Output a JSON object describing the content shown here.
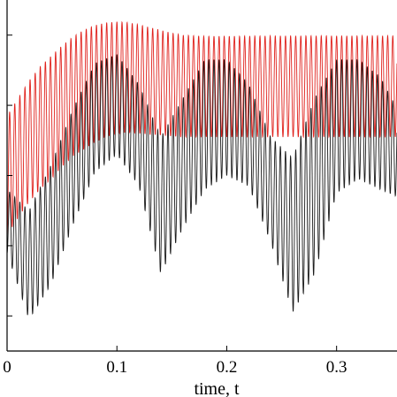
{
  "chart_data": {
    "type": "line",
    "title": "",
    "xlabel": "time, t",
    "ylabel": "",
    "xlim": [
      0,
      0.355
    ],
    "ylim": [
      -5,
      5
    ],
    "grid": false,
    "legend": "none",
    "x_ticks": [
      0,
      0.1,
      0.2,
      0.3
    ],
    "x_tick_labels": [
      "0",
      "0.1",
      "0.2",
      "0.3"
    ],
    "y_ticks": [
      -4,
      -2,
      0,
      2,
      4
    ],
    "series": [
      {
        "color": "#e0211c",
        "carrier_frequency_hz": 215,
        "upper_envelope": {
          "x": [
            0,
            0.01,
            0.02,
            0.03,
            0.04,
            0.05,
            0.06,
            0.07,
            0.08,
            0.09,
            0.1,
            0.11,
            0.12,
            0.13,
            0.14,
            0.15,
            0.16,
            0.18,
            0.2,
            0.25,
            0.3,
            0.35
          ],
          "y": [
            1.7,
            2.2,
            2.7,
            3.1,
            3.4,
            3.7,
            3.95,
            4.15,
            4.28,
            4.35,
            4.38,
            4.36,
            4.3,
            4.22,
            4.14,
            4.06,
            4.0,
            3.97,
            3.97,
            3.98,
            3.98,
            3.98
          ]
        },
        "lower_envelope": {
          "x": [
            0,
            0.01,
            0.02,
            0.03,
            0.04,
            0.05,
            0.06,
            0.07,
            0.08,
            0.09,
            0.1,
            0.11,
            0.12,
            0.13,
            0.14,
            0.15,
            0.16,
            0.2,
            0.25,
            0.3,
            0.35
          ],
          "y": [
            -1.7,
            -1.2,
            -0.75,
            -0.4,
            -0.1,
            0.25,
            0.55,
            0.75,
            0.95,
            1.1,
            1.2,
            1.23,
            1.2,
            1.17,
            1.15,
            1.12,
            1.1,
            1.1,
            1.1,
            1.1,
            1.1
          ]
        }
      },
      {
        "color": "#1a1a1a",
        "carrier_frequency_hz": 215,
        "upper_envelope": {
          "x": [
            0,
            0.02,
            0.04,
            0.06,
            0.08,
            0.1,
            0.12,
            0.14,
            0.16,
            0.18,
            0.2,
            0.22,
            0.24,
            0.26,
            0.28,
            0.3,
            0.32,
            0.34,
            0.355
          ],
          "y": [
            -0.4,
            -1.0,
            0.3,
            1.9,
            3.2,
            3.45,
            2.6,
            1.1,
            2.2,
            3.3,
            3.3,
            2.6,
            1.1,
            0.5,
            2.2,
            3.3,
            3.3,
            2.8,
            1.9
          ]
        },
        "lower_envelope": {
          "x": [
            0,
            0.02,
            0.04,
            0.06,
            0.08,
            0.1,
            0.12,
            0.14,
            0.16,
            0.18,
            0.2,
            0.22,
            0.24,
            0.26,
            0.28,
            0.3,
            0.32,
            0.34,
            0.355
          ],
          "y": [
            -2.2,
            -4.1,
            -3.1,
            -1.4,
            0.1,
            0.6,
            -0.3,
            -2.8,
            -1.5,
            -0.4,
            0.0,
            -0.3,
            -1.9,
            -3.9,
            -2.8,
            -0.5,
            -0.1,
            -0.4,
            -0.6
          ]
        }
      }
    ]
  }
}
